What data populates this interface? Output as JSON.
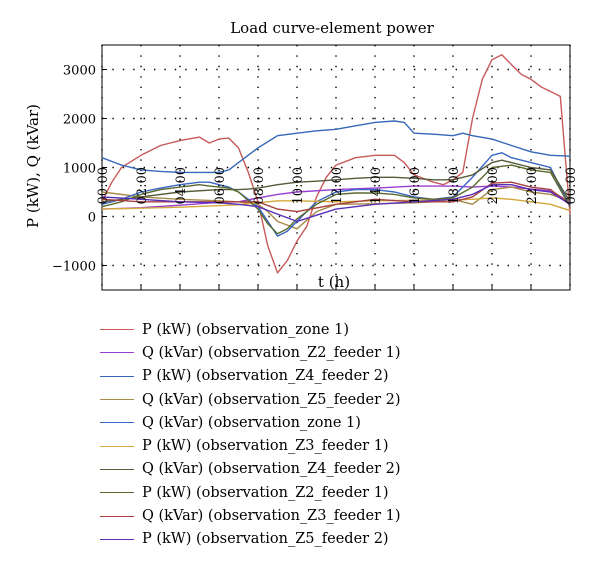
{
  "chart_data": {
    "type": "line",
    "title": "Load curve-element power",
    "xlabel": "t (h)",
    "ylabel": "P (kW), Q (kVar)",
    "xlim": [
      0,
      24
    ],
    "ylim": [
      -1500,
      3500
    ],
    "x_ticks": [
      "00:00",
      "02:00",
      "04:00",
      "06:00",
      "08:00",
      "10:00",
      "12:00",
      "14:00",
      "16:00",
      "18:00",
      "20:00",
      "22:00",
      "00:00"
    ],
    "y_ticks": [
      "−1000",
      "0",
      "1000",
      "2000",
      "3000"
    ],
    "y_tick_values": [
      -1000,
      0,
      1000,
      2000,
      3000
    ],
    "grid": true,
    "legend_position": "below",
    "series": [
      {
        "name": "P (kW) (observation_zone 1)",
        "color": "#c85a5a",
        "x": [
          0,
          0.5,
          1,
          2,
          3,
          4,
          5,
          5.5,
          6,
          6.5,
          7,
          7.5,
          8,
          8.5,
          9,
          9.5,
          10,
          10.5,
          11,
          11.5,
          12,
          13,
          14,
          15,
          15.5,
          16,
          17,
          17.5,
          18,
          18.5,
          19,
          19.5,
          20,
          20.5,
          21,
          21.5,
          22,
          22.5,
          23,
          23.5,
          24
        ],
        "y": [
          300,
          700,
          1000,
          1250,
          1450,
          1550,
          1620,
          1500,
          1580,
          1600,
          1400,
          900,
          300,
          -600,
          -1150,
          -900,
          -500,
          -200,
          400,
          800,
          1050,
          1200,
          1250,
          1250,
          1100,
          850,
          700,
          650,
          750,
          900,
          2000,
          2800,
          3200,
          3300,
          3100,
          2900,
          2800,
          2650,
          2550,
          2450,
          50
        ]
      },
      {
        "name": "Q (kVar) (observation_Z2_feeder 1)",
        "color": "#9a3fd1",
        "x": [
          0,
          2,
          4,
          6,
          7,
          8,
          9,
          10,
          12,
          14,
          16,
          18,
          19,
          20,
          21,
          22,
          23,
          24
        ],
        "y": [
          150,
          180,
          230,
          290,
          300,
          380,
          450,
          500,
          550,
          580,
          620,
          620,
          600,
          620,
          600,
          560,
          520,
          300
        ]
      },
      {
        "name": "P (kW) (observation_Z4_feeder 2)",
        "color": "#3568b8",
        "x": [
          0,
          1,
          2,
          3,
          4,
          5,
          6,
          6.5,
          7,
          8,
          9,
          10,
          11,
          12,
          13,
          14,
          15,
          15.5,
          16,
          17,
          18,
          18.5,
          19,
          20,
          21,
          22,
          23,
          24
        ],
        "y": [
          1200,
          1050,
          950,
          920,
          900,
          900,
          900,
          950,
          1100,
          1400,
          1650,
          1700,
          1750,
          1780,
          1850,
          1920,
          1950,
          1920,
          1700,
          1680,
          1650,
          1700,
          1650,
          1580,
          1450,
          1320,
          1250,
          1230
        ]
      },
      {
        "name": "Q (kVar) (observation_Z5_feeder 2)",
        "color": "#a88a48",
        "x": [
          0,
          2,
          4,
          6,
          7,
          8,
          8.5,
          9,
          10,
          11,
          12,
          14,
          16,
          17,
          18,
          18.5,
          19,
          20,
          21,
          22,
          23,
          24
        ],
        "y": [
          500,
          400,
          350,
          320,
          300,
          250,
          100,
          -100,
          -250,
          100,
          250,
          260,
          280,
          300,
          350,
          300,
          250,
          550,
          600,
          500,
          450,
          320
        ]
      },
      {
        "name": "Q (kVar) (observation_zone 1)",
        "color": "#3a66c4",
        "x": [
          0,
          1,
          2,
          3,
          4,
          5,
          5.5,
          6,
          6.5,
          7,
          8,
          8.5,
          9,
          9.5,
          10,
          11,
          12,
          13,
          14,
          15,
          16,
          17,
          18,
          19,
          20,
          20.5,
          21,
          22,
          23,
          24
        ],
        "y": [
          250,
          350,
          500,
          580,
          650,
          700,
          700,
          650,
          600,
          500,
          200,
          -100,
          -400,
          -300,
          -100,
          300,
          500,
          550,
          550,
          500,
          400,
          350,
          400,
          800,
          1250,
          1300,
          1200,
          1100,
          1000,
          200
        ]
      },
      {
        "name": "P (kW) (observation_Z3_feeder 1)",
        "color": "#d3a93b",
        "x": [
          0,
          2,
          4,
          6,
          7,
          8,
          9,
          10,
          12,
          14,
          16,
          18,
          19,
          20,
          21,
          22,
          23,
          24
        ],
        "y": [
          150,
          170,
          190,
          220,
          240,
          280,
          320,
          320,
          300,
          320,
          330,
          340,
          350,
          380,
          350,
          300,
          250,
          120
        ]
      },
      {
        "name": "Q (kVar) (observation_Z4_feeder 2)",
        "color": "#555b3a",
        "x": [
          0,
          2,
          4,
          6,
          7,
          7.5,
          8,
          9,
          10,
          11,
          12,
          13,
          14,
          15,
          16,
          17,
          18,
          19,
          20,
          20.5,
          21,
          22,
          23,
          24
        ],
        "y": [
          300,
          400,
          500,
          550,
          550,
          560,
          580,
          650,
          700,
          720,
          750,
          780,
          800,
          800,
          780,
          750,
          750,
          850,
          1100,
          1150,
          1100,
          1000,
          950,
          300
        ]
      },
      {
        "name": "P (kW) (observation_Z2_feeder 1)",
        "color": "#5a6a2e",
        "x": [
          0,
          1,
          2,
          3,
          4,
          5,
          5.5,
          6,
          6.5,
          7,
          8,
          8.5,
          9,
          9.5,
          10,
          11,
          12,
          13,
          14,
          15,
          16,
          17,
          18,
          19,
          20,
          21,
          22,
          23,
          24
        ],
        "y": [
          200,
          300,
          450,
          550,
          600,
          650,
          620,
          600,
          580,
          500,
          150,
          -150,
          -350,
          -250,
          -50,
          250,
          450,
          480,
          480,
          450,
          380,
          350,
          380,
          600,
          1000,
          1050,
          950,
          900,
          200
        ]
      },
      {
        "name": "Q (kVar) (observation_Z3_feeder 1)",
        "color": "#a84040",
        "x": [
          0,
          2,
          4,
          6,
          8,
          9,
          10,
          12,
          14,
          16,
          18,
          19,
          20,
          21,
          22,
          23,
          24
        ],
        "y": [
          350,
          300,
          300,
          300,
          300,
          150,
          100,
          250,
          350,
          300,
          300,
          400,
          680,
          700,
          600,
          550,
          250
        ]
      },
      {
        "name": "P (kW) (observation_Z5_feeder 2)",
        "color": "#5a2fb8",
        "x": [
          0,
          2,
          4,
          6,
          7,
          8,
          9,
          10,
          12,
          14,
          16,
          18,
          19,
          20,
          21,
          22,
          23,
          24
        ],
        "y": [
          400,
          350,
          300,
          280,
          250,
          200,
          50,
          -100,
          150,
          250,
          300,
          350,
          450,
          650,
          650,
          550,
          500,
          250
        ]
      }
    ]
  }
}
